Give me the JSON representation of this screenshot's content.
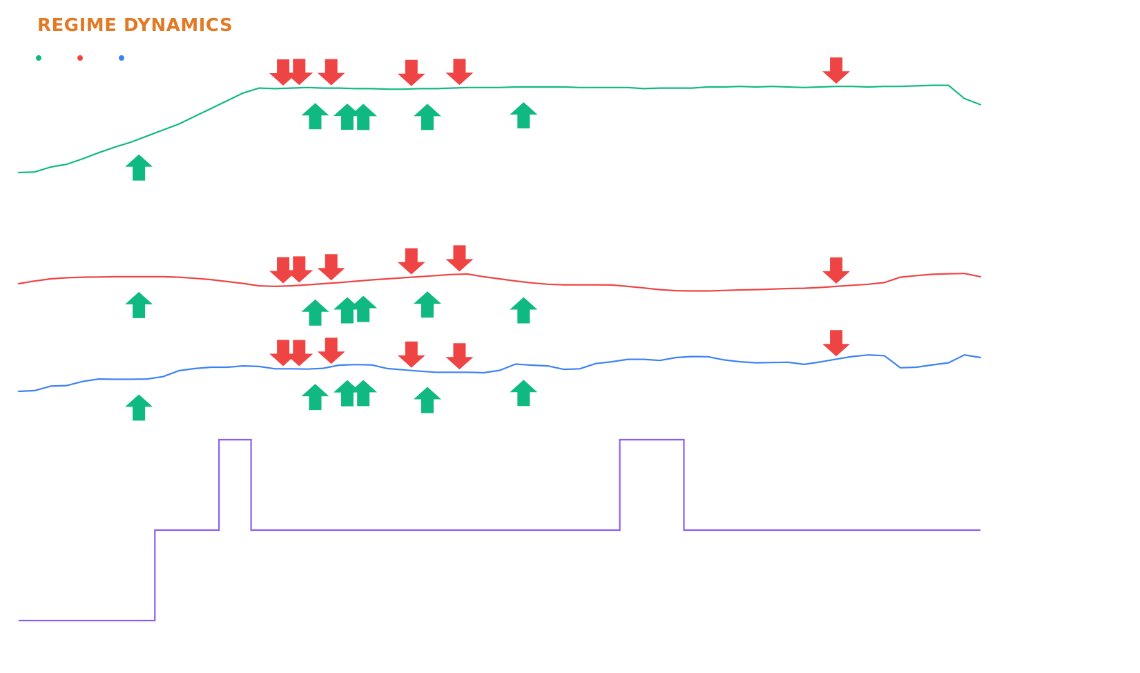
{
  "title": "REGIME DYNAMICS",
  "colors": {
    "title": "#e07a25",
    "green": "#10b981",
    "red": "#ef4444",
    "blue": "#3b82f6",
    "purple": "#8b5cf6",
    "buy_marker": "#10b981",
    "sell_marker": "#ef4444"
  },
  "legend": [
    {
      "color": "#10b981"
    },
    {
      "color": "#ef4444"
    },
    {
      "color": "#3b82f6"
    }
  ],
  "chart_data": {
    "type": "line",
    "x_count": 60,
    "grid": false,
    "series": [
      {
        "color": "#10b981",
        "values": [
          0.0,
          0.01,
          0.1,
          0.15,
          0.25,
          0.36,
          0.46,
          0.55,
          0.66,
          0.77,
          0.88,
          1.02,
          1.16,
          1.3,
          1.44,
          1.53,
          1.52,
          1.53,
          1.54,
          1.53,
          1.53,
          1.52,
          1.52,
          1.51,
          1.51,
          1.52,
          1.52,
          1.53,
          1.54,
          1.54,
          1.54,
          1.55,
          1.55,
          1.55,
          1.55,
          1.54,
          1.54,
          1.54,
          1.54,
          1.52,
          1.53,
          1.53,
          1.53,
          1.55,
          1.55,
          1.56,
          1.55,
          1.56,
          1.55,
          1.54,
          1.55,
          1.56,
          1.56,
          1.55,
          1.56,
          1.56,
          1.57,
          1.58,
          1.58,
          1.34,
          1.23
        ]
      },
      {
        "color": "#ef4444",
        "values": [
          0.0,
          0.1,
          0.18,
          0.22,
          0.24,
          0.25,
          0.26,
          0.26,
          0.26,
          0.26,
          0.24,
          0.2,
          0.15,
          0.08,
          0.01,
          -0.08,
          -0.1,
          -0.08,
          -0.04,
          0.0,
          0.04,
          0.09,
          0.14,
          0.18,
          0.22,
          0.26,
          0.3,
          0.34,
          0.36,
          0.26,
          0.18,
          0.1,
          0.03,
          -0.02,
          -0.04,
          -0.04,
          -0.04,
          -0.05,
          -0.1,
          -0.16,
          -0.22,
          -0.26,
          -0.27,
          -0.27,
          -0.25,
          -0.23,
          -0.22,
          -0.2,
          -0.18,
          -0.17,
          -0.14,
          -0.1,
          -0.06,
          -0.02,
          0.04,
          0.24,
          0.3,
          0.35,
          0.37,
          0.38,
          0.26
        ]
      },
      {
        "color": "#3b82f6",
        "values": [
          0.0,
          0.03,
          0.2,
          0.22,
          0.38,
          0.47,
          0.46,
          0.46,
          0.47,
          0.56,
          0.79,
          0.87,
          0.92,
          0.92,
          0.97,
          0.95,
          0.86,
          0.86,
          0.85,
          0.88,
          1.0,
          1.02,
          1.01,
          0.87,
          0.82,
          0.77,
          0.73,
          0.73,
          0.73,
          0.71,
          0.8,
          1.04,
          1.0,
          0.97,
          0.84,
          0.86,
          1.06,
          1.13,
          1.22,
          1.22,
          1.18,
          1.29,
          1.33,
          1.32,
          1.2,
          1.13,
          1.09,
          1.1,
          1.11,
          1.03,
          1.12,
          1.23,
          1.33,
          1.39,
          1.36,
          0.9,
          0.92,
          1.01,
          1.09,
          1.39,
          1.29
        ]
      },
      {
        "color": "#8b5cf6",
        "step": true,
        "x_breaks": [
          0,
          8.5,
          12.5,
          14.5,
          37.5,
          41.5,
          60
        ],
        "levels": [
          0,
          1,
          2,
          1,
          2,
          1
        ]
      }
    ],
    "buy_signals_x": [
      7.5,
      18.5,
      20.5,
      21.5,
      25.5,
      31.5
    ],
    "sell_signals_x": [
      16.5,
      17.5,
      19.5,
      24.5,
      27.5,
      51.0
    ]
  }
}
